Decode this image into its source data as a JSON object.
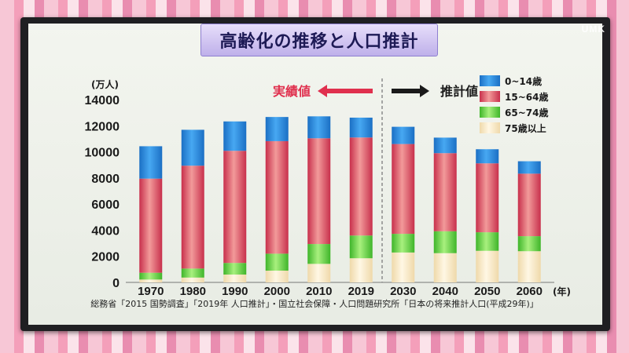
{
  "title": "高齢化の推移と人口推計",
  "watermark": "UMK",
  "actual_label": "実績値",
  "projection_label": "推計値",
  "source": "総務省「2015 国勢調査」「2019年 人口推計」・国立社会保障・人口問題研究所「日本の将来推計人口(平成29年)」",
  "colors": {
    "age_0_14": "#2b8fe6",
    "age_15_64": "#e0506a",
    "age_65_74": "#6cd84e",
    "age_75_plus": "#f6e6c2"
  },
  "chart_data": {
    "type": "bar",
    "stacked": true,
    "title": "",
    "xlabel": "(年)",
    "ylabel": "(万人)",
    "ylim": [
      0,
      14000
    ],
    "yticks": [
      0,
      2000,
      4000,
      6000,
      8000,
      10000,
      12000,
      14000
    ],
    "ytick_labels": [
      "0",
      "2000",
      "4000",
      "6000",
      "8000",
      "10000",
      "12000",
      "14000"
    ],
    "categories": [
      "1970",
      "1980",
      "1990",
      "2000",
      "2010",
      "2019",
      "2030",
      "2040",
      "2050",
      "2060"
    ],
    "series": [
      {
        "name": "75歳以上",
        "values": [
          220,
          370,
          600,
          900,
          1420,
          1850,
          2290,
          2240,
          2420,
          2390
        ]
      },
      {
        "name": "65~74歳",
        "values": [
          520,
          690,
          890,
          1300,
          1520,
          1740,
          1430,
          1680,
          1420,
          1150
        ]
      },
      {
        "name": "15~64歳",
        "values": [
          7210,
          7880,
          8590,
          8620,
          8100,
          7510,
          6880,
          5980,
          5280,
          4790
        ]
      },
      {
        "name": "0~14歳",
        "values": [
          2480,
          2750,
          2250,
          1850,
          1680,
          1520,
          1320,
          1190,
          1080,
          950
        ]
      }
    ],
    "legend_order": [
      "0~14歳",
      "15~64歳",
      "65~74歳",
      "75歳以上"
    ],
    "legend_position": "top-right",
    "divider_after": "2019",
    "grid": false
  }
}
